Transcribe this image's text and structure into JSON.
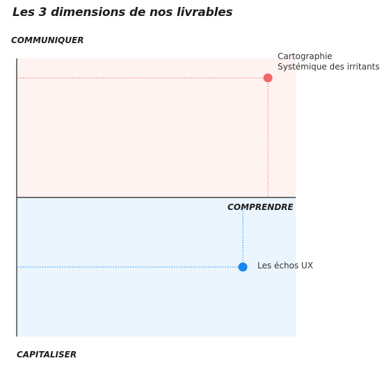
{
  "title": "Les 3 dimensions de nos livrables",
  "axes": {
    "top": "COMMUNIQUER",
    "middle": "COMPRENDRE",
    "bottom": "CAPITALISER"
  },
  "colors": {
    "top_zone": "#fff3f1",
    "bottom_zone": "#eaf5fd",
    "point_red": "#f0676a",
    "point_blue": "#1a86f0",
    "axis": "#1d1d1d"
  },
  "points": [
    {
      "label_line1": "Cartographie",
      "label_line2": "Systémique des irritants",
      "zone": "communiquer",
      "color": "#f0676a"
    },
    {
      "label_line1": "Les échos UX",
      "label_line2": "",
      "zone": "capitaliser",
      "color": "#1a86f0"
    }
  ]
}
